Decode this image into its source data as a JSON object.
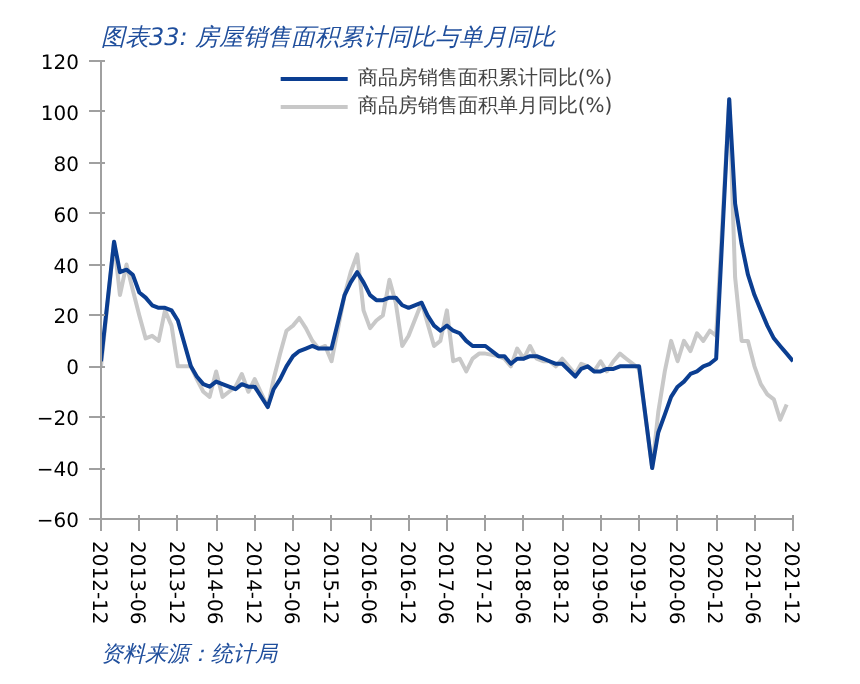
{
  "chart_data": {
    "type": "line",
    "title": "图表33: 房屋销售面积累计同比与单月同比",
    "annotations": [
      "资料来源：统计局"
    ],
    "x": [
      "2012-12",
      "2013-02",
      "2013-03",
      "2013-04",
      "2013-05",
      "2013-06",
      "2013-07",
      "2013-08",
      "2013-09",
      "2013-10",
      "2013-11",
      "2013-12",
      "2014-02",
      "2014-03",
      "2014-04",
      "2014-05",
      "2014-06",
      "2014-07",
      "2014-08",
      "2014-09",
      "2014-10",
      "2014-11",
      "2014-12",
      "2015-02",
      "2015-03",
      "2015-04",
      "2015-05",
      "2015-06",
      "2015-07",
      "2015-08",
      "2015-09",
      "2015-10",
      "2015-11",
      "2015-12",
      "2016-02",
      "2016-03",
      "2016-04",
      "2016-05",
      "2016-06",
      "2016-07",
      "2016-08",
      "2016-09",
      "2016-10",
      "2016-11",
      "2016-12",
      "2017-02",
      "2017-03",
      "2017-04",
      "2017-05",
      "2017-06",
      "2017-07",
      "2017-08",
      "2017-09",
      "2017-10",
      "2017-11",
      "2017-12",
      "2018-02",
      "2018-03",
      "2018-04",
      "2018-05",
      "2018-06",
      "2018-07",
      "2018-08",
      "2018-09",
      "2018-10",
      "2018-11",
      "2018-12",
      "2019-02",
      "2019-03",
      "2019-04",
      "2019-05",
      "2019-06",
      "2019-07",
      "2019-08",
      "2019-09",
      "2019-10",
      "2019-11",
      "2019-12",
      "2020-02",
      "2020-03",
      "2020-04",
      "2020-05",
      "2020-06",
      "2020-07",
      "2020-08",
      "2020-09",
      "2020-10",
      "2020-11",
      "2020-12",
      "2021-02",
      "2021-03",
      "2021-04",
      "2021-05",
      "2021-06",
      "2021-07",
      "2021-08",
      "2021-09",
      "2021-10",
      "2021-11",
      "2021-12"
    ],
    "series": [
      {
        "name": "商品房销售面积累计同比(%)",
        "color": "#0b3e91",
        "values": [
          2,
          49,
          37,
          38,
          36,
          29,
          27,
          24,
          23,
          23,
          22,
          18,
          0,
          -4,
          -7,
          -8,
          -6,
          -7,
          -8,
          -9,
          -7,
          -8,
          -8,
          -16,
          -9,
          -5,
          0,
          4,
          6,
          7,
          8,
          7,
          7,
          7,
          28,
          33,
          37,
          33,
          28,
          26,
          26,
          27,
          27,
          24,
          23,
          25,
          20,
          16,
          14,
          16,
          14,
          13,
          10,
          8,
          8,
          8,
          4,
          4,
          1,
          3,
          3,
          4,
          4,
          3,
          2,
          1,
          1,
          -4,
          -1,
          0,
          -2,
          -2,
          -1,
          -1,
          0,
          0,
          0,
          0,
          -40,
          -26,
          -19,
          -12,
          -8,
          -6,
          -3,
          -2,
          0,
          1,
          3,
          105,
          64,
          48,
          36,
          28,
          22,
          16,
          11,
          8,
          5,
          2
        ]
      },
      {
        "name": "商品房销售面积单月同比(%)",
        "color": "#c8c8c8",
        "values": [
          0,
          49,
          28,
          40,
          30,
          20,
          11,
          12,
          10,
          22,
          16,
          0,
          0,
          -5,
          -10,
          -12,
          -2,
          -12,
          -10,
          -8,
          -3,
          -10,
          -5,
          -16,
          -5,
          5,
          14,
          16,
          19,
          15,
          10,
          7,
          8,
          2,
          28,
          37,
          44,
          22,
          15,
          18,
          20,
          34,
          25,
          8,
          12,
          25,
          17,
          8,
          10,
          22,
          2,
          3,
          -2,
          3,
          5,
          5,
          4,
          3,
          0,
          7,
          3,
          8,
          3,
          2,
          2,
          0,
          3,
          -3,
          1,
          0,
          -2,
          2,
          -2,
          2,
          5,
          3,
          1,
          -1,
          -40,
          -18,
          -2,
          10,
          2,
          10,
          6,
          13,
          10,
          14,
          12,
          105,
          35,
          10,
          10,
          0,
          -7,
          -11,
          -13,
          -21,
          -15,
          null
        ]
      }
    ],
    "ylim": [
      -60,
      120
    ],
    "yticks": [
      -60,
      -40,
      -20,
      0,
      20,
      40,
      60,
      80,
      100,
      120
    ],
    "xlim": [
      "2012-12",
      "2021-12"
    ],
    "xticks": [
      "2012-12",
      "2013-06",
      "2013-12",
      "2014-06",
      "2014-12",
      "2015-06",
      "2015-12",
      "2016-06",
      "2016-12",
      "2017-06",
      "2017-12",
      "2018-06",
      "2018-12",
      "2019-06",
      "2019-12",
      "2020-06",
      "2020-12",
      "2021-06",
      "2021-12"
    ],
    "legend": "top",
    "grid": false,
    "line_style": "solid"
  }
}
